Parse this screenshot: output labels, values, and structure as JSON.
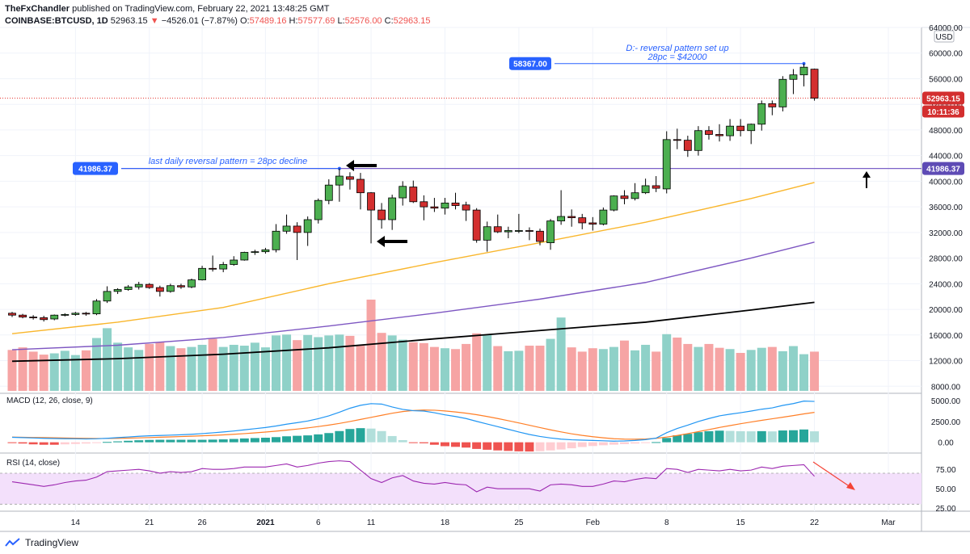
{
  "header": {
    "publisher": "TheFxChandler",
    "published_text": "published on TradingView.com, February 22, 2021 13:48:25 GMT"
  },
  "ohlc_line": {
    "symbol": "COINBASE:BTCUSD, 1D",
    "last": "52963.15",
    "change": "−4526.01 (−7.87%)",
    "o_label": "O:",
    "o": "57489.16",
    "h_label": "H:",
    "h": "57577.69",
    "l_label": "L:",
    "l": "52576.00",
    "c_label": "C:",
    "c": "52963.15"
  },
  "colors": {
    "up": "#4caf50",
    "down": "#d32f2f",
    "ma50": "#f9b62c",
    "ma100": "#7e57c2",
    "ma200": "#000000",
    "vol_up": "#8fd1c8",
    "vol_down": "#f6a4a4",
    "macd_line": "#2196f3",
    "signal_line": "#ff7f27",
    "rsi_line": "#9c27b0",
    "rsi_band": "#f3e0fb",
    "annotation_blue": "#2962ff",
    "level_line": "#7b61c8"
  },
  "chart_data": {
    "type": "candlestick",
    "price_axis": {
      "ylim": [
        6900,
        64000
      ],
      "ticks": [
        "64000.00",
        "60000.00",
        "56000.00",
        "52000.00",
        "48000.00",
        "44000.00",
        "40000.00",
        "36000.00",
        "32000.00",
        "28000.00",
        "24000.00",
        "20000.00",
        "16000.00",
        "12000.00",
        "8000.00"
      ],
      "currency": "USD"
    },
    "x_axis": {
      "ticks": [
        {
          "label": "14",
          "index": 6
        },
        {
          "label": "21",
          "index": 13
        },
        {
          "label": "26",
          "index": 18
        },
        {
          "label": "2021",
          "index": 24
        },
        {
          "label": "6",
          "index": 29
        },
        {
          "label": "11",
          "index": 34
        },
        {
          "label": "18",
          "index": 41
        },
        {
          "label": "25",
          "index": 48
        },
        {
          "label": "Feb",
          "index": 55
        },
        {
          "label": "8",
          "index": 62
        },
        {
          "label": "15",
          "index": 69
        },
        {
          "label": "22",
          "index": 76
        },
        {
          "label": "Mar",
          "index": 83
        }
      ]
    },
    "candles": [
      {
        "o": 19400,
        "h": 19600,
        "l": 18800,
        "c": 19100
      },
      {
        "o": 19100,
        "h": 19300,
        "l": 18600,
        "c": 18800
      },
      {
        "o": 18800,
        "h": 19100,
        "l": 18400,
        "c": 18700
      },
      {
        "o": 18700,
        "h": 19000,
        "l": 18100,
        "c": 18400
      },
      {
        "o": 18500,
        "h": 19200,
        "l": 18300,
        "c": 19100
      },
      {
        "o": 19100,
        "h": 19400,
        "l": 18900,
        "c": 19200
      },
      {
        "o": 19200,
        "h": 19600,
        "l": 19000,
        "c": 19400
      },
      {
        "o": 19400,
        "h": 19600,
        "l": 19000,
        "c": 19300
      },
      {
        "o": 19300,
        "h": 21600,
        "l": 19100,
        "c": 21300
      },
      {
        "o": 21300,
        "h": 23600,
        "l": 21000,
        "c": 22800
      },
      {
        "o": 22800,
        "h": 23300,
        "l": 22400,
        "c": 23100
      },
      {
        "o": 23100,
        "h": 23800,
        "l": 22900,
        "c": 23500
      },
      {
        "o": 23500,
        "h": 24300,
        "l": 23100,
        "c": 23900
      },
      {
        "o": 23900,
        "h": 24100,
        "l": 23200,
        "c": 23400
      },
      {
        "o": 23400,
        "h": 23700,
        "l": 22000,
        "c": 22800
      },
      {
        "o": 22800,
        "h": 24000,
        "l": 22600,
        "c": 23700
      },
      {
        "o": 23700,
        "h": 24000,
        "l": 23200,
        "c": 23500
      },
      {
        "o": 23500,
        "h": 24800,
        "l": 23300,
        "c": 24600
      },
      {
        "o": 24600,
        "h": 26800,
        "l": 24500,
        "c": 26400
      },
      {
        "o": 26400,
        "h": 28400,
        "l": 25900,
        "c": 26300
      },
      {
        "o": 26300,
        "h": 27400,
        "l": 25800,
        "c": 27000
      },
      {
        "o": 27000,
        "h": 28300,
        "l": 26800,
        "c": 27700
      },
      {
        "o": 27700,
        "h": 29000,
        "l": 27600,
        "c": 28900
      },
      {
        "o": 28900,
        "h": 29300,
        "l": 28500,
        "c": 29000
      },
      {
        "o": 29000,
        "h": 29600,
        "l": 28700,
        "c": 29300
      },
      {
        "o": 29300,
        "h": 33300,
        "l": 28900,
        "c": 32200
      },
      {
        "o": 32200,
        "h": 34800,
        "l": 31800,
        "c": 33000
      },
      {
        "o": 33000,
        "h": 33600,
        "l": 27700,
        "c": 32000
      },
      {
        "o": 32000,
        "h": 34500,
        "l": 29900,
        "c": 34000
      },
      {
        "o": 34000,
        "h": 37300,
        "l": 33400,
        "c": 37000
      },
      {
        "o": 37000,
        "h": 40300,
        "l": 36400,
        "c": 39400
      },
      {
        "o": 39400,
        "h": 41986,
        "l": 36800,
        "c": 40800
      },
      {
        "o": 40700,
        "h": 41400,
        "l": 38700,
        "c": 40300
      },
      {
        "o": 40300,
        "h": 41300,
        "l": 35600,
        "c": 38200
      },
      {
        "o": 38200,
        "h": 38300,
        "l": 30300,
        "c": 35500
      },
      {
        "o": 35500,
        "h": 36600,
        "l": 32600,
        "c": 34000
      },
      {
        "o": 34000,
        "h": 37900,
        "l": 32400,
        "c": 37400
      },
      {
        "o": 37400,
        "h": 40000,
        "l": 36200,
        "c": 39200
      },
      {
        "o": 39100,
        "h": 40100,
        "l": 36600,
        "c": 36800
      },
      {
        "o": 36800,
        "h": 37800,
        "l": 33900,
        "c": 36000
      },
      {
        "o": 36000,
        "h": 37400,
        "l": 35200,
        "c": 35800
      },
      {
        "o": 35800,
        "h": 37400,
        "l": 34800,
        "c": 36600
      },
      {
        "o": 36600,
        "h": 38200,
        "l": 35600,
        "c": 36200
      },
      {
        "o": 36300,
        "h": 36800,
        "l": 33800,
        "c": 35500
      },
      {
        "o": 35500,
        "h": 35800,
        "l": 30400,
        "c": 30800
      },
      {
        "o": 30800,
        "h": 33700,
        "l": 29000,
        "c": 32900
      },
      {
        "o": 32900,
        "h": 34800,
        "l": 31900,
        "c": 32100
      },
      {
        "o": 32100,
        "h": 32900,
        "l": 31100,
        "c": 32300
      },
      {
        "o": 32300,
        "h": 34900,
        "l": 31900,
        "c": 32300
      },
      {
        "o": 32300,
        "h": 32800,
        "l": 30800,
        "c": 32200
      },
      {
        "o": 32200,
        "h": 32600,
        "l": 30000,
        "c": 30600
      },
      {
        "o": 30400,
        "h": 34100,
        "l": 29300,
        "c": 33800
      },
      {
        "o": 33800,
        "h": 38600,
        "l": 33200,
        "c": 34500
      },
      {
        "o": 34500,
        "h": 35600,
        "l": 32900,
        "c": 34300
      },
      {
        "o": 34300,
        "h": 34900,
        "l": 32500,
        "c": 33500
      },
      {
        "o": 33500,
        "h": 34400,
        "l": 32300,
        "c": 33300
      },
      {
        "o": 33300,
        "h": 35900,
        "l": 33100,
        "c": 35500
      },
      {
        "o": 35500,
        "h": 37800,
        "l": 35300,
        "c": 37700
      },
      {
        "o": 37700,
        "h": 38600,
        "l": 36400,
        "c": 37300
      },
      {
        "o": 37300,
        "h": 39700,
        "l": 37000,
        "c": 38200
      },
      {
        "o": 38200,
        "h": 40400,
        "l": 38000,
        "c": 39300
      },
      {
        "o": 39300,
        "h": 40800,
        "l": 38300,
        "c": 38900
      },
      {
        "o": 38800,
        "h": 47800,
        "l": 38100,
        "c": 46500
      },
      {
        "o": 46500,
        "h": 48200,
        "l": 45000,
        "c": 46400
      },
      {
        "o": 46400,
        "h": 47100,
        "l": 43800,
        "c": 44800
      },
      {
        "o": 44800,
        "h": 48600,
        "l": 44000,
        "c": 47900
      },
      {
        "o": 47900,
        "h": 48600,
        "l": 46500,
        "c": 47300
      },
      {
        "o": 47300,
        "h": 48900,
        "l": 46200,
        "c": 47100
      },
      {
        "o": 47100,
        "h": 49700,
        "l": 46300,
        "c": 48600
      },
      {
        "o": 48600,
        "h": 49700,
        "l": 47000,
        "c": 47900
      },
      {
        "o": 47900,
        "h": 49000,
        "l": 45800,
        "c": 48900
      },
      {
        "o": 48900,
        "h": 52600,
        "l": 47900,
        "c": 52100
      },
      {
        "o": 52100,
        "h": 52600,
        "l": 50300,
        "c": 51600
      },
      {
        "o": 51600,
        "h": 56400,
        "l": 50900,
        "c": 55900
      },
      {
        "o": 55900,
        "h": 57500,
        "l": 53600,
        "c": 56600
      },
      {
        "o": 56600,
        "h": 58367,
        "l": 54800,
        "c": 57800
      },
      {
        "o": 57489,
        "h": 57578,
        "l": 52576,
        "c": 52963
      }
    ],
    "moving_averages": [
      {
        "color_key": "ma50",
        "points": [
          [
            0,
            16200
          ],
          [
            10,
            18000
          ],
          [
            20,
            20300
          ],
          [
            30,
            24000
          ],
          [
            40,
            27300
          ],
          [
            50,
            30400
          ],
          [
            60,
            33600
          ],
          [
            70,
            37300
          ],
          [
            76,
            39800
          ]
        ]
      },
      {
        "color_key": "ma100",
        "points": [
          [
            0,
            13700
          ],
          [
            10,
            14400
          ],
          [
            20,
            15600
          ],
          [
            30,
            17400
          ],
          [
            40,
            19400
          ],
          [
            50,
            21600
          ],
          [
            60,
            24200
          ],
          [
            70,
            28000
          ],
          [
            76,
            30500
          ]
        ]
      },
      {
        "color_key": "ma200",
        "points": [
          [
            0,
            11900
          ],
          [
            10,
            12300
          ],
          [
            20,
            13000
          ],
          [
            30,
            14000
          ],
          [
            40,
            15400
          ],
          [
            50,
            16700
          ],
          [
            60,
            18000
          ],
          [
            70,
            19900
          ],
          [
            76,
            21100
          ]
        ]
      }
    ],
    "volume_scale_max": 21400,
    "volume": [
      9600,
      10200,
      9200,
      8500,
      8800,
      9400,
      8400,
      9500,
      12400,
      14700,
      11300,
      10200,
      9600,
      11000,
      11400,
      10500,
      10000,
      10300,
      10800,
      12200,
      10300,
      10800,
      10600,
      11300,
      10200,
      13000,
      13200,
      11900,
      13100,
      12600,
      13000,
      13200,
      12900,
      10600,
      21400,
      13600,
      13000,
      12000,
      11400,
      11200,
      10300,
      10000,
      9800,
      11000,
      13500,
      13200,
      10500,
      9300,
      9400,
      10600,
      10600,
      12200,
      17200,
      10200,
      9200,
      10000,
      9800,
      10300,
      11800,
      9500,
      10800,
      9200,
      13300,
      12500,
      11000,
      10300,
      11000,
      10100,
      9800,
      8900,
      9600,
      10100,
      10300,
      9300,
      10500,
      8600,
      9200
    ],
    "reference_levels": [
      {
        "label": "41986.37",
        "value": 41986.37
      },
      {
        "label": "58367.00",
        "value": 58367.0
      }
    ],
    "last_price_label": "52963.15",
    "countdown_label": "10:11:36",
    "annotations": [
      {
        "text_line1": "D:- reversal pattern set up",
        "text_line2": "28pc = $42000"
      },
      {
        "text": "last daily reversal pattern = 28pc decline"
      }
    ],
    "macd": {
      "label": "MACD (12, 26, close, 9)",
      "ticks": [
        "5000.00",
        "2500.00",
        "0.00"
      ],
      "ylim": [
        -1200,
        5800
      ],
      "macd_line": [
        600,
        560,
        520,
        480,
        450,
        430,
        420,
        400,
        420,
        480,
        560,
        640,
        720,
        780,
        820,
        860,
        900,
        960,
        1040,
        1140,
        1240,
        1360,
        1500,
        1640,
        1780,
        1960,
        2180,
        2360,
        2560,
        2840,
        3180,
        3620,
        4100,
        4450,
        4650,
        4600,
        4250,
        3960,
        3800,
        3760,
        3560,
        3300,
        3100,
        2860,
        2520,
        2200,
        1880,
        1560,
        1240,
        940,
        700,
        520,
        380,
        300,
        260,
        220,
        180,
        140,
        160,
        220,
        320,
        500,
        1150,
        1660,
        2060,
        2500,
        2860,
        3180,
        3380,
        3560,
        3760,
        3980,
        4140,
        4440,
        4660,
        4960,
        4920
      ],
      "signal_line": [
        620,
        600,
        580,
        560,
        540,
        510,
        490,
        470,
        460,
        460,
        470,
        500,
        530,
        570,
        610,
        650,
        690,
        730,
        780,
        830,
        890,
        960,
        1040,
        1130,
        1230,
        1340,
        1460,
        1590,
        1730,
        1890,
        2070,
        2270,
        2500,
        2750,
        3000,
        3250,
        3500,
        3700,
        3820,
        3880,
        3860,
        3770,
        3650,
        3500,
        3320,
        3100,
        2860,
        2600,
        2330,
        2050,
        1770,
        1500,
        1250,
        1020,
        830,
        670,
        540,
        430,
        380,
        370,
        400,
        480,
        630,
        820,
        1040,
        1280,
        1530,
        1780,
        2010,
        2230,
        2440,
        2640,
        2830,
        3020,
        3210,
        3420,
        3600
      ],
      "histogram": [
        -100,
        -150,
        -250,
        -300,
        -300,
        -250,
        -200,
        -150,
        -30,
        40,
        110,
        180,
        240,
        280,
        300,
        300,
        300,
        300,
        300,
        320,
        350,
        400,
        460,
        510,
        550,
        620,
        720,
        780,
        830,
        950,
        1110,
        1350,
        1600,
        1700,
        1650,
        1350,
        750,
        260,
        -20,
        -120,
        -300,
        -470,
        -550,
        -640,
        -800,
        -900,
        -980,
        -1040,
        -1090,
        -1110,
        -1070,
        -980,
        -870,
        -720,
        -570,
        -450,
        -360,
        -290,
        -220,
        -150,
        -80,
        20,
        520,
        840,
        1020,
        1220,
        1330,
        1400,
        1370,
        1330,
        1320,
        1340,
        1310,
        1420,
        1450,
        1540,
        1320
      ]
    },
    "rsi": {
      "label": "RSI (14, close)",
      "ticks": [
        "75.00",
        "50.00",
        "25.00"
      ],
      "ylim": [
        22,
        95
      ],
      "band": [
        30,
        70
      ],
      "values": [
        59,
        57,
        55,
        53,
        55,
        58,
        60,
        61,
        65,
        72,
        73,
        74,
        75,
        73,
        70,
        72,
        71,
        72,
        76,
        75,
        75,
        76,
        78,
        78,
        78,
        80,
        82,
        78,
        80,
        83,
        85,
        86,
        85,
        74,
        63,
        58,
        64,
        67,
        60,
        57,
        56,
        58,
        56,
        55,
        46,
        52,
        50,
        50,
        50,
        50,
        47,
        55,
        56,
        55,
        53,
        53,
        56,
        60,
        59,
        62,
        64,
        63,
        76,
        75,
        71,
        75,
        74,
        73,
        75,
        73,
        74,
        78,
        76,
        79,
        80,
        81,
        66
      ]
    }
  },
  "footer": {
    "brand": "TradingView"
  }
}
